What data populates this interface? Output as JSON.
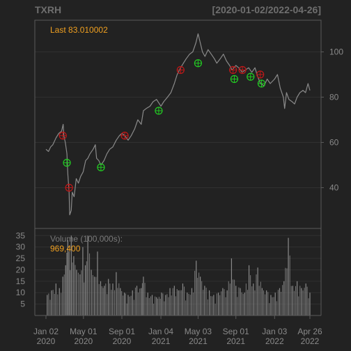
{
  "chart_data": {
    "type": "line",
    "symbol": "TXRH",
    "date_range": "[2020-01-02/2022-04-26]",
    "last_label": "Last 83.010002",
    "price_ylim": [
      22,
      114
    ],
    "price_ticks": [
      40,
      60,
      80,
      100
    ],
    "volume_label": "Volume (100,000s):",
    "volume_value": "969,400",
    "volume_ylim": [
      0,
      36
    ],
    "volume_ticks": [
      5,
      10,
      15,
      20,
      25,
      30,
      35
    ],
    "x_ticks": [
      {
        "date": "2020-01-02",
        "line1": "Jan 02",
        "line2": "2020"
      },
      {
        "date": "2020-05-01",
        "line1": "May 01",
        "line2": "2020"
      },
      {
        "date": "2020-09-01",
        "line1": "Sep 01",
        "line2": "2020"
      },
      {
        "date": "2021-01-04",
        "line1": "Jan 04",
        "line2": "2021"
      },
      {
        "date": "2021-05-03",
        "line1": "May 03",
        "line2": "2021"
      },
      {
        "date": "2021-09-01",
        "line1": "Sep 01",
        "line2": "2021"
      },
      {
        "date": "2022-01-03",
        "line1": "Jan 03",
        "line2": "2022"
      },
      {
        "date": "2022-04-26",
        "line1": "Apr 26",
        "line2": "2022"
      }
    ],
    "price_series": [
      [
        "2020-01-02",
        57
      ],
      [
        "2020-01-10",
        56
      ],
      [
        "2020-01-17",
        58
      ],
      [
        "2020-01-24",
        59
      ],
      [
        "2020-02-03",
        62
      ],
      [
        "2020-02-12",
        64
      ],
      [
        "2020-02-21",
        65
      ],
      [
        "2020-02-26",
        68
      ],
      [
        "2020-02-28",
        63
      ],
      [
        "2020-03-04",
        60
      ],
      [
        "2020-03-09",
        55
      ],
      [
        "2020-03-12",
        46
      ],
      [
        "2020-03-16",
        38
      ],
      [
        "2020-03-18",
        28
      ],
      [
        "2020-03-23",
        30
      ],
      [
        "2020-03-26",
        38
      ],
      [
        "2020-04-01",
        36
      ],
      [
        "2020-04-08",
        44
      ],
      [
        "2020-04-15",
        42
      ],
      [
        "2020-04-22",
        45
      ],
      [
        "2020-04-30",
        47
      ],
      [
        "2020-05-08",
        52
      ],
      [
        "2020-05-15",
        53
      ],
      [
        "2020-05-22",
        55
      ],
      [
        "2020-06-01",
        57
      ],
      [
        "2020-06-08",
        59
      ],
      [
        "2020-06-12",
        53
      ],
      [
        "2020-06-19",
        52
      ],
      [
        "2020-06-26",
        50
      ],
      [
        "2020-07-06",
        52
      ],
      [
        "2020-07-15",
        55
      ],
      [
        "2020-07-24",
        57
      ],
      [
        "2020-08-03",
        58
      ],
      [
        "2020-08-14",
        61
      ],
      [
        "2020-08-24",
        63
      ],
      [
        "2020-09-01",
        64
      ],
      [
        "2020-09-10",
        63
      ],
      [
        "2020-09-21",
        61
      ],
      [
        "2020-10-01",
        63
      ],
      [
        "2020-10-12",
        66
      ],
      [
        "2020-10-22",
        70
      ],
      [
        "2020-11-02",
        68
      ],
      [
        "2020-11-09",
        74
      ],
      [
        "2020-11-18",
        75
      ],
      [
        "2020-11-30",
        76
      ],
      [
        "2020-12-10",
        78
      ],
      [
        "2020-12-21",
        79
      ],
      [
        "2021-01-04",
        76
      ],
      [
        "2021-01-13",
        78
      ],
      [
        "2021-01-25",
        80
      ],
      [
        "2021-02-05",
        82
      ],
      [
        "2021-02-16",
        86
      ],
      [
        "2021-02-25",
        90
      ],
      [
        "2021-03-08",
        93
      ],
      [
        "2021-03-17",
        95
      ],
      [
        "2021-03-26",
        97
      ],
      [
        "2021-04-06",
        99
      ],
      [
        "2021-04-16",
        100
      ],
      [
        "2021-04-26",
        104
      ],
      [
        "2021-05-03",
        108
      ],
      [
        "2021-05-10",
        104
      ],
      [
        "2021-05-17",
        100
      ],
      [
        "2021-05-25",
        98
      ],
      [
        "2021-06-04",
        101
      ],
      [
        "2021-06-14",
        99
      ],
      [
        "2021-06-24",
        97
      ],
      [
        "2021-07-02",
        95
      ],
      [
        "2021-07-13",
        97
      ],
      [
        "2021-07-23",
        99
      ],
      [
        "2021-08-02",
        96
      ],
      [
        "2021-08-12",
        94
      ],
      [
        "2021-08-20",
        92
      ],
      [
        "2021-09-01",
        94
      ],
      [
        "2021-09-10",
        93
      ],
      [
        "2021-09-21",
        91
      ],
      [
        "2021-10-01",
        92
      ],
      [
        "2021-10-12",
        93
      ],
      [
        "2021-10-22",
        91
      ],
      [
        "2021-11-01",
        93
      ],
      [
        "2021-11-10",
        89
      ],
      [
        "2021-11-19",
        86
      ],
      [
        "2021-11-30",
        85
      ],
      [
        "2021-12-10",
        88
      ],
      [
        "2021-12-20",
        86
      ],
      [
        "2022-01-03",
        88
      ],
      [
        "2022-01-12",
        90
      ],
      [
        "2022-01-21",
        84
      ],
      [
        "2022-01-31",
        80
      ],
      [
        "2022-02-04",
        75
      ],
      [
        "2022-02-10",
        82
      ],
      [
        "2022-02-18",
        79
      ],
      [
        "2022-02-28",
        78
      ],
      [
        "2022-03-08",
        77
      ],
      [
        "2022-03-16",
        80
      ],
      [
        "2022-03-25",
        82
      ],
      [
        "2022-04-04",
        83
      ],
      [
        "2022-04-12",
        82
      ],
      [
        "2022-04-20",
        86
      ],
      [
        "2022-04-26",
        83
      ]
    ],
    "markers": [
      {
        "date": "2020-02-25",
        "price": 63,
        "kind": "red"
      },
      {
        "date": "2020-03-09",
        "price": 51,
        "kind": "green"
      },
      {
        "date": "2020-03-16",
        "price": 40,
        "kind": "red"
      },
      {
        "date": "2020-06-26",
        "price": 49,
        "kind": "green"
      },
      {
        "date": "2020-09-10",
        "price": 63,
        "kind": "red"
      },
      {
        "date": "2020-12-28",
        "price": 74,
        "kind": "green"
      },
      {
        "date": "2021-03-08",
        "price": 92,
        "kind": "red"
      },
      {
        "date": "2021-05-03",
        "price": 95,
        "kind": "green"
      },
      {
        "date": "2021-08-23",
        "price": 92,
        "kind": "red"
      },
      {
        "date": "2021-08-27",
        "price": 88,
        "kind": "green"
      },
      {
        "date": "2021-09-22",
        "price": 92,
        "kind": "red"
      },
      {
        "date": "2021-10-18",
        "price": 89,
        "kind": "green"
      },
      {
        "date": "2021-11-18",
        "price": 90,
        "kind": "red"
      },
      {
        "date": "2021-11-22",
        "price": 86,
        "kind": "green"
      }
    ],
    "volume_series": [
      [
        "2020-01-06",
        9
      ],
      [
        "2020-01-20",
        11
      ],
      [
        "2020-02-03",
        14
      ],
      [
        "2020-02-14",
        12
      ],
      [
        "2020-02-25",
        17
      ],
      [
        "2020-03-05",
        22
      ],
      [
        "2020-03-12",
        33
      ],
      [
        "2020-03-16",
        28
      ],
      [
        "2020-03-23",
        35
      ],
      [
        "2020-03-31",
        26
      ],
      [
        "2020-04-09",
        20
      ],
      [
        "2020-04-20",
        18
      ],
      [
        "2020-04-29",
        30
      ],
      [
        "2020-05-07",
        22
      ],
      [
        "2020-05-15",
        35
      ],
      [
        "2020-05-26",
        20
      ],
      [
        "2020-06-05",
        17
      ],
      [
        "2020-06-15",
        28
      ],
      [
        "2020-06-25",
        15
      ],
      [
        "2020-07-07",
        13
      ],
      [
        "2020-07-20",
        16
      ],
      [
        "2020-08-03",
        14
      ],
      [
        "2020-08-14",
        19
      ],
      [
        "2020-08-27",
        12
      ],
      [
        "2020-09-09",
        10
      ],
      [
        "2020-09-21",
        9
      ],
      [
        "2020-10-05",
        11
      ],
      [
        "2020-10-19",
        13
      ],
      [
        "2020-11-02",
        12
      ],
      [
        "2020-11-09",
        17
      ],
      [
        "2020-11-23",
        10
      ],
      [
        "2020-12-07",
        9
      ],
      [
        "2020-12-21",
        8
      ],
      [
        "2021-01-06",
        10
      ],
      [
        "2021-01-19",
        9
      ],
      [
        "2021-02-02",
        12
      ],
      [
        "2021-02-16",
        13
      ],
      [
        "2021-03-01",
        11
      ],
      [
        "2021-03-15",
        14
      ],
      [
        "2021-03-29",
        10
      ],
      [
        "2021-04-13",
        12
      ],
      [
        "2021-04-27",
        24
      ],
      [
        "2021-05-10",
        17
      ],
      [
        "2021-05-24",
        13
      ],
      [
        "2021-06-08",
        11
      ],
      [
        "2021-06-22",
        9
      ],
      [
        "2021-07-07",
        10
      ],
      [
        "2021-07-21",
        12
      ],
      [
        "2021-08-04",
        11
      ],
      [
        "2021-08-18",
        25
      ],
      [
        "2021-09-01",
        13
      ],
      [
        "2021-09-15",
        12
      ],
      [
        "2021-09-29",
        10
      ],
      [
        "2021-10-13",
        22
      ],
      [
        "2021-10-27",
        14
      ],
      [
        "2021-11-10",
        21
      ],
      [
        "2021-11-24",
        12
      ],
      [
        "2021-12-08",
        11
      ],
      [
        "2021-12-22",
        9
      ],
      [
        "2022-01-05",
        10
      ],
      [
        "2022-01-19",
        12
      ],
      [
        "2022-02-02",
        15
      ],
      [
        "2022-02-16",
        34
      ],
      [
        "2022-03-02",
        13
      ],
      [
        "2022-03-16",
        15
      ],
      [
        "2022-03-30",
        12
      ],
      [
        "2022-04-13",
        14
      ],
      [
        "2022-04-26",
        10
      ]
    ],
    "colors": {
      "background": "#222222",
      "panel_border": "#5a5a5a",
      "grid": "#303030",
      "price_line": "#8a8a8a",
      "volume_bar": "#8a8a8a",
      "marker_red": "#c01818",
      "marker_green": "#22cc22",
      "accent": "#f0a020",
      "title": "#6e6e6e",
      "tick": "#8a8a8a"
    }
  }
}
